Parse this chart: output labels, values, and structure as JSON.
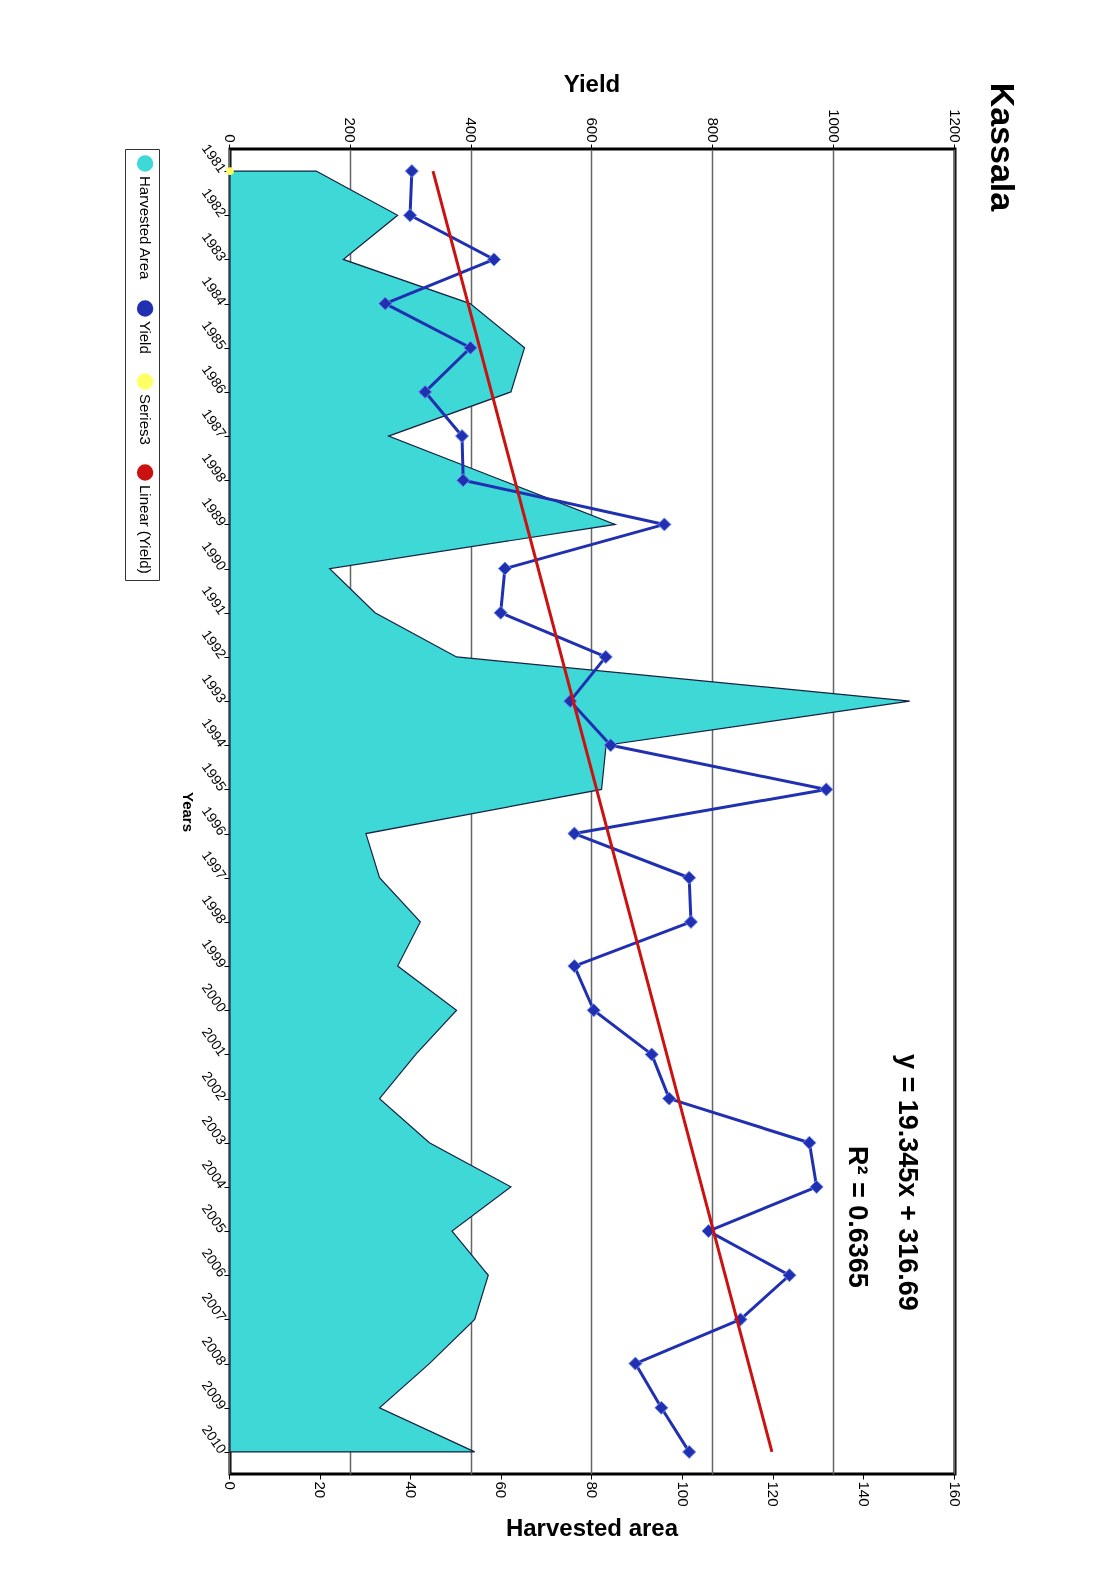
{
  "chart_data": {
    "type": "area",
    "title": "Kassala",
    "orientation": "horizontal",
    "xlabel": "Harvested area",
    "x2label": "Yield",
    "ylabel": "Years",
    "categories": [
      "1981",
      "1982",
      "1983",
      "1984",
      "1985",
      "1986",
      "1987",
      "1998",
      "1989",
      "1990",
      "1991",
      "1992",
      "1993",
      "1994",
      "1995",
      "1996",
      "1997",
      "1998",
      "1999",
      "2000",
      "2001",
      "2002",
      "2003",
      "2004",
      "2005",
      "2006",
      "2007",
      "2008",
      "2009",
      "2010"
    ],
    "xlim": [
      0,
      160
    ],
    "xticks": [
      0,
      20,
      40,
      60,
      80,
      100,
      120,
      140,
      160
    ],
    "x2lim": [
      0,
      1200
    ],
    "x2ticks": [
      0,
      200,
      400,
      600,
      800,
      1000,
      1200
    ],
    "grid": "x",
    "legend": "left",
    "annotations": [
      "y = 19.345x + 316.69",
      "R² = 0.6365"
    ],
    "series": [
      {
        "name": "Harvested Area",
        "color": "#3ed9d6",
        "values": [
          19,
          37,
          25,
          53,
          65,
          62,
          35,
          60,
          85,
          22,
          32,
          50,
          150,
          83,
          82,
          30,
          33,
          42,
          37,
          50,
          41,
          33,
          44,
          62,
          49,
          57,
          54,
          44,
          33,
          54
        ]
      },
      {
        "name": "Yield",
        "type": "line",
        "axis": "x2",
        "marker": "diamond",
        "color": "#2030b0",
        "values": [
          301,
          298,
          437,
          257,
          398,
          323,
          384,
          386,
          719,
          455,
          448,
          622,
          563,
          630,
          987,
          570,
          760,
          763,
          570,
          602,
          698,
          727,
          959,
          971,
          792,
          926,
          845,
          671,
          714,
          760
        ]
      },
      {
        "name": "Series3",
        "type": "scatter",
        "axis": "x2",
        "color": "#ffff66",
        "values": [
          0,
          null,
          null,
          null,
          null,
          null,
          null,
          null,
          null,
          null,
          null,
          null,
          null,
          null,
          null,
          null,
          null,
          null,
          null,
          null,
          null,
          null,
          null,
          null,
          null,
          null,
          null,
          null,
          null,
          null
        ]
      },
      {
        "name": "Linear (Yield)",
        "type": "line",
        "axis": "x2",
        "color": "#cc1111",
        "values": [
          336,
          null,
          null,
          null,
          null,
          null,
          null,
          null,
          null,
          null,
          null,
          null,
          null,
          null,
          null,
          null,
          null,
          null,
          null,
          null,
          null,
          null,
          null,
          null,
          null,
          null,
          null,
          null,
          null,
          897
        ]
      }
    ]
  }
}
